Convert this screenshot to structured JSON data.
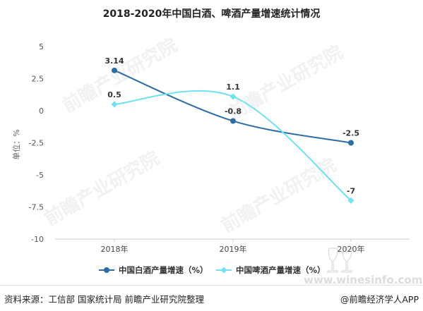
{
  "chart_data": {
    "type": "line",
    "title": "2018-2020年中国白酒、啤酒产量增速统计情况",
    "ylabel": "单位：%",
    "xlabel": "",
    "categories": [
      "2018年",
      "2019年",
      "2020年"
    ],
    "ylim": [
      -10,
      5
    ],
    "yticks": [
      "5",
      "2.5",
      "0",
      "-2.5",
      "-5",
      "-7.5",
      "-10"
    ],
    "ytick_values": [
      5,
      2.5,
      0,
      -2.5,
      -5,
      -7.5,
      -10
    ],
    "series": [
      {
        "name": "中国白酒产量增速（%）",
        "values": [
          3.14,
          -0.8,
          -2.5
        ],
        "labels": [
          "3.14",
          "-0.8",
          "-2.5"
        ],
        "color": "#2e6da4",
        "marker": "circle"
      },
      {
        "name": "中国啤酒产量增速（%）",
        "values": [
          0.5,
          1.1,
          -7
        ],
        "labels": [
          "0.5",
          "1.1",
          "-7"
        ],
        "color": "#6fe3ef",
        "marker": "diamond"
      }
    ],
    "legend_position": "bottom",
    "grid": false
  },
  "footer": {
    "source": "资料来源：工信部 国家统计局 前瞻产业研究院整理",
    "app": "@前瞻经济学人APP"
  },
  "watermark": {
    "text": "前瞻产业研究院",
    "corner_text": "www.winesinfo.com"
  }
}
